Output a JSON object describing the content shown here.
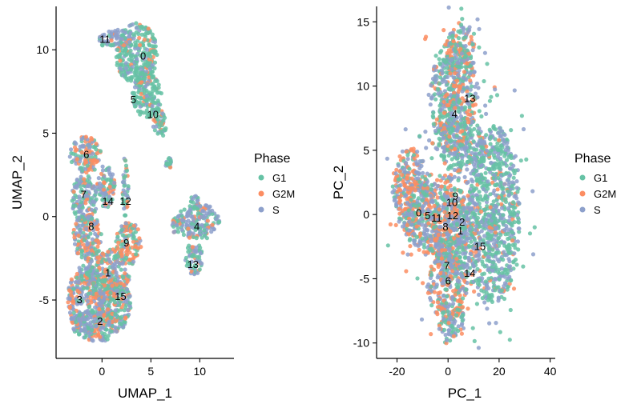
{
  "colors": {
    "G1": "#66c2a5",
    "G2M": "#fc8d62",
    "S": "#8da0cb"
  },
  "chart_data": [
    {
      "type": "scatter",
      "xlabel": "UMAP_1",
      "ylabel": "UMAP_2",
      "xlim": [
        -4.7,
        13.5
      ],
      "ylim": [
        -8.5,
        12.6
      ],
      "xticks": [
        0,
        5,
        10
      ],
      "yticks": [
        -5,
        0,
        5,
        10
      ],
      "grid": false,
      "legend": {
        "title": "Phase",
        "position": "right",
        "entries": [
          "G1",
          "G2M",
          "S"
        ]
      },
      "series": [
        {
          "name": "G1",
          "color": "#66c2a5"
        },
        {
          "name": "G2M",
          "color": "#fc8d62"
        },
        {
          "name": "S",
          "color": "#8da0cb"
        }
      ],
      "regions": [
        {
          "cx": 3.5,
          "cy": 9.8,
          "rx": 2.2,
          "ry": 1.8,
          "w": [
            0.72,
            0.12,
            0.16
          ]
        },
        {
          "cx": 1.5,
          "cy": 10.6,
          "rx": 1.8,
          "ry": 0.6,
          "w": [
            0.2,
            0.1,
            0.7
          ]
        },
        {
          "cx": 4.6,
          "cy": 7.3,
          "rx": 1.5,
          "ry": 1.4,
          "w": [
            0.72,
            0.1,
            0.18
          ]
        },
        {
          "cx": 5.9,
          "cy": 5.6,
          "rx": 0.7,
          "ry": 0.9,
          "w": [
            0.7,
            0.1,
            0.2
          ]
        },
        {
          "cx": 6.8,
          "cy": 3.2,
          "rx": 0.3,
          "ry": 0.35,
          "w": [
            0.6,
            0.1,
            0.3
          ]
        },
        {
          "cx": -1.7,
          "cy": 3.7,
          "rx": 1.6,
          "ry": 1.1,
          "w": [
            0.3,
            0.4,
            0.3
          ]
        },
        {
          "cx": -1.8,
          "cy": 1.0,
          "rx": 1.3,
          "ry": 1.5,
          "w": [
            0.5,
            0.15,
            0.35
          ]
        },
        {
          "cx": 0.4,
          "cy": 1.8,
          "rx": 0.9,
          "ry": 1.3,
          "w": [
            0.4,
            0.2,
            0.4
          ]
        },
        {
          "cx": 2.4,
          "cy": 1.8,
          "rx": 0.35,
          "ry": 1.8,
          "w": [
            0.55,
            0.15,
            0.3
          ]
        },
        {
          "cx": -1.5,
          "cy": -1.2,
          "rx": 1.5,
          "ry": 1.4,
          "w": [
            0.25,
            0.45,
            0.3
          ]
        },
        {
          "cx": 2.7,
          "cy": -1.6,
          "rx": 1.3,
          "ry": 1.3,
          "w": [
            0.35,
            0.45,
            0.2
          ]
        },
        {
          "cx": 0.5,
          "cy": -3.5,
          "rx": 2.3,
          "ry": 1.6,
          "w": [
            0.35,
            0.35,
            0.3
          ]
        },
        {
          "cx": -1.6,
          "cy": -5.0,
          "rx": 1.9,
          "ry": 2.1,
          "w": [
            0.25,
            0.25,
            0.5
          ]
        },
        {
          "cx": 1.4,
          "cy": -5.3,
          "rx": 1.6,
          "ry": 1.4,
          "w": [
            0.5,
            0.2,
            0.3
          ]
        },
        {
          "cx": -0.4,
          "cy": -6.5,
          "rx": 2.6,
          "ry": 1.0,
          "w": [
            0.3,
            0.2,
            0.5
          ]
        },
        {
          "cx": 9.8,
          "cy": -0.3,
          "rx": 2.2,
          "ry": 1.1,
          "w": [
            0.3,
            0.15,
            0.55
          ]
        },
        {
          "cx": 9.5,
          "cy": 0.9,
          "rx": 0.4,
          "ry": 0.6,
          "w": [
            0.3,
            0.1,
            0.6
          ]
        },
        {
          "cx": 9.4,
          "cy": -2.5,
          "rx": 0.9,
          "ry": 1.0,
          "w": [
            0.45,
            0.15,
            0.4
          ]
        },
        {
          "cx": 7.6,
          "cy": -0.5,
          "rx": 0.4,
          "ry": 0.6,
          "w": [
            0.5,
            0.2,
            0.3
          ]
        }
      ],
      "clusters": [
        {
          "label": "0",
          "x": 4.2,
          "y": 9.6
        },
        {
          "label": "1",
          "x": 0.6,
          "y": -3.4
        },
        {
          "label": "2",
          "x": -0.2,
          "y": -6.3
        },
        {
          "label": "3",
          "x": -2.3,
          "y": -5.0
        },
        {
          "label": "4",
          "x": 9.7,
          "y": -0.6
        },
        {
          "label": "5",
          "x": 3.2,
          "y": 7.0
        },
        {
          "label": "6",
          "x": -1.6,
          "y": 3.7
        },
        {
          "label": "7",
          "x": -1.9,
          "y": 1.3
        },
        {
          "label": "8",
          "x": -1.1,
          "y": -0.6
        },
        {
          "label": "9",
          "x": 2.5,
          "y": -1.6
        },
        {
          "label": "10",
          "x": 5.2,
          "y": 6.1
        },
        {
          "label": "11",
          "x": 0.3,
          "y": 10.6
        },
        {
          "label": "12",
          "x": 2.4,
          "y": 0.9
        },
        {
          "label": "13",
          "x": 9.3,
          "y": -2.9
        },
        {
          "label": "14",
          "x": 0.6,
          "y": 0.9
        },
        {
          "label": "15",
          "x": 1.9,
          "y": -4.8
        }
      ]
    },
    {
      "type": "scatter",
      "xlabel": "PC_1",
      "ylabel": "PC_2",
      "xlim": [
        -28,
        42
      ],
      "ylim": [
        -11.2,
        16.2
      ],
      "xticks": [
        -20,
        0,
        20,
        40
      ],
      "yticks": [
        -10,
        -5,
        0,
        5,
        10,
        15
      ],
      "grid": false,
      "legend": {
        "title": "Phase",
        "position": "right",
        "entries": [
          "G1",
          "G2M",
          "S"
        ]
      },
      "series": [
        {
          "name": "G1",
          "color": "#66c2a5"
        },
        {
          "name": "G2M",
          "color": "#fc8d62"
        },
        {
          "name": "S",
          "color": "#8da0cb"
        }
      ],
      "regions": [
        {
          "cx": 2,
          "cy": 9,
          "rx": 9,
          "ry": 4.5,
          "w": [
            0.4,
            0.2,
            0.4
          ]
        },
        {
          "cx": 5,
          "cy": 12.5,
          "rx": 6,
          "ry": 2.3,
          "w": [
            0.35,
            0.3,
            0.35
          ]
        },
        {
          "cx": 5,
          "cy": 5.5,
          "rx": 9,
          "ry": 2.2,
          "w": [
            0.5,
            0.15,
            0.35
          ]
        },
        {
          "cx": -5,
          "cy": 0,
          "rx": 13,
          "ry": 3.3,
          "w": [
            0.3,
            0.3,
            0.4
          ]
        },
        {
          "cx": 3,
          "cy": -2,
          "rx": 10,
          "ry": 3.2,
          "w": [
            0.3,
            0.25,
            0.45
          ]
        },
        {
          "cx": 0,
          "cy": -5.5,
          "rx": 8,
          "ry": 2.8,
          "w": [
            0.3,
            0.35,
            0.35
          ]
        },
        {
          "cx": 1,
          "cy": -8,
          "rx": 5,
          "ry": 1.6,
          "w": [
            0.35,
            0.25,
            0.4
          ]
        },
        {
          "cx": 18,
          "cy": 0,
          "rx": 10,
          "ry": 7,
          "w": [
            0.55,
            0.05,
            0.4
          ]
        },
        {
          "cx": -15,
          "cy": 2,
          "rx": 7,
          "ry": 3.2,
          "w": [
            0.25,
            0.35,
            0.4
          ]
        }
      ],
      "clusters": [
        {
          "label": "0",
          "x": -11.5,
          "y": 0.1
        },
        {
          "label": "1",
          "x": 4.8,
          "y": -1.3
        },
        {
          "label": "2",
          "x": 5.5,
          "y": -0.6
        },
        {
          "label": "4",
          "x": 2.5,
          "y": 7.8
        },
        {
          "label": "5",
          "x": -8,
          "y": -0.1
        },
        {
          "label": "6",
          "x": 0,
          "y": -5.2
        },
        {
          "label": "7",
          "x": -0.5,
          "y": -4.0
        },
        {
          "label": "8",
          "x": -1,
          "y": -1.0
        },
        {
          "label": "9",
          "x": 2.9,
          "y": 1.4
        },
        {
          "label": "10",
          "x": 1.5,
          "y": 0.9
        },
        {
          "label": "11",
          "x": -4.5,
          "y": -0.3
        },
        {
          "label": "12",
          "x": 1.8,
          "y": -0.1
        },
        {
          "label": "13",
          "x": 8.5,
          "y": 9.0
        },
        {
          "label": "14",
          "x": 8.5,
          "y": -4.6
        },
        {
          "label": "15",
          "x": 12.5,
          "y": -2.5
        }
      ]
    }
  ]
}
